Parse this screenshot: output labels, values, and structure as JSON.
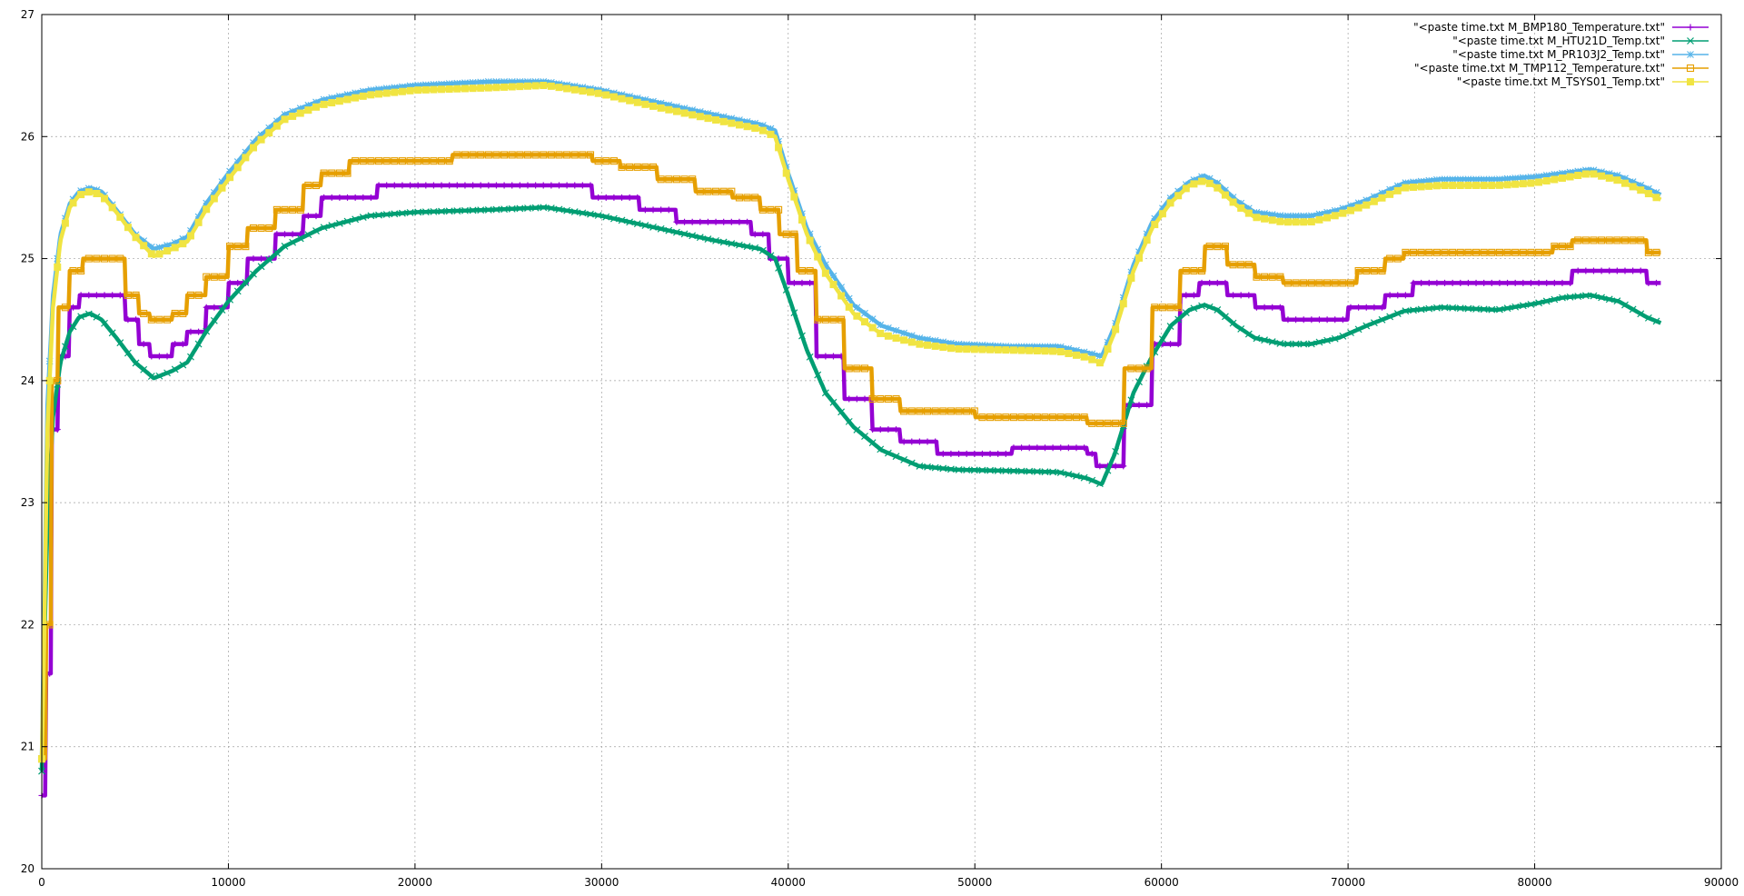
{
  "chart_data": {
    "type": "line",
    "xlim": [
      0,
      90000
    ],
    "ylim": [
      20,
      27
    ],
    "grid": true,
    "legend_position": "top-right",
    "x_ticks": [
      "0",
      "10000",
      "20000",
      "30000",
      "40000",
      "50000",
      "60000",
      "70000",
      "80000",
      "90000"
    ],
    "y_ticks": [
      "20",
      "21",
      "22",
      "23",
      "24",
      "25",
      "26",
      "27"
    ],
    "series": [
      {
        "name": "\"<paste time.txt M_BMP180_Temperature.txt\"",
        "color": "#9400d3",
        "marker": "plus",
        "step": true,
        "points": [
          [
            0,
            20.6
          ],
          [
            200,
            21.6
          ],
          [
            500,
            23.6
          ],
          [
            900,
            24.2
          ],
          [
            1500,
            24.6
          ],
          [
            2000,
            24.7
          ],
          [
            3500,
            24.7
          ],
          [
            4500,
            24.5
          ],
          [
            5200,
            24.3
          ],
          [
            5800,
            24.2
          ],
          [
            7000,
            24.3
          ],
          [
            7800,
            24.4
          ],
          [
            8800,
            24.6
          ],
          [
            10000,
            24.8
          ],
          [
            11000,
            25.0
          ],
          [
            12500,
            25.2
          ],
          [
            14000,
            25.35
          ],
          [
            15000,
            25.5
          ],
          [
            17500,
            25.5
          ],
          [
            18000,
            25.6
          ],
          [
            29000,
            25.6
          ],
          [
            29500,
            25.5
          ],
          [
            32000,
            25.4
          ],
          [
            34000,
            25.3
          ],
          [
            38000,
            25.2
          ],
          [
            39000,
            25.0
          ],
          [
            40000,
            24.8
          ],
          [
            41500,
            24.2
          ],
          [
            43000,
            23.85
          ],
          [
            44500,
            23.6
          ],
          [
            46000,
            23.5
          ],
          [
            48000,
            23.4
          ],
          [
            52000,
            23.45
          ],
          [
            56000,
            23.4
          ],
          [
            56500,
            23.3
          ],
          [
            57000,
            23.3
          ],
          [
            58000,
            23.8
          ],
          [
            59500,
            24.3
          ],
          [
            61000,
            24.7
          ],
          [
            62000,
            24.8
          ],
          [
            63500,
            24.7
          ],
          [
            65000,
            24.6
          ],
          [
            66500,
            24.5
          ],
          [
            69000,
            24.5
          ],
          [
            70000,
            24.6
          ],
          [
            72000,
            24.7
          ],
          [
            73500,
            24.8
          ],
          [
            81000,
            24.8
          ],
          [
            82000,
            24.9
          ],
          [
            85000,
            24.9
          ],
          [
            86000,
            24.8
          ],
          [
            86800,
            24.7
          ]
        ]
      },
      {
        "name": "\"<paste time.txt M_HTU21D_Temp.txt\"",
        "color": "#009e73",
        "marker": "cross",
        "step": false,
        "points": [
          [
            0,
            20.8
          ],
          [
            100,
            21.6
          ],
          [
            300,
            22.8
          ],
          [
            600,
            23.7
          ],
          [
            1000,
            24.15
          ],
          [
            1500,
            24.4
          ],
          [
            2000,
            24.52
          ],
          [
            2600,
            24.55
          ],
          [
            3200,
            24.5
          ],
          [
            4000,
            24.35
          ],
          [
            5000,
            24.15
          ],
          [
            6000,
            24.02
          ],
          [
            7000,
            24.08
          ],
          [
            7800,
            24.15
          ],
          [
            8800,
            24.4
          ],
          [
            10000,
            24.65
          ],
          [
            11500,
            24.9
          ],
          [
            13000,
            25.1
          ],
          [
            15000,
            25.25
          ],
          [
            17500,
            25.35
          ],
          [
            20000,
            25.38
          ],
          [
            24000,
            25.4
          ],
          [
            27000,
            25.42
          ],
          [
            30000,
            25.35
          ],
          [
            33000,
            25.25
          ],
          [
            36000,
            25.15
          ],
          [
            38500,
            25.08
          ],
          [
            39300,
            25.0
          ],
          [
            40000,
            24.7
          ],
          [
            41000,
            24.25
          ],
          [
            42000,
            23.9
          ],
          [
            43500,
            23.62
          ],
          [
            45000,
            23.43
          ],
          [
            47000,
            23.3
          ],
          [
            49000,
            23.27
          ],
          [
            52000,
            23.26
          ],
          [
            54500,
            23.25
          ],
          [
            56000,
            23.2
          ],
          [
            56800,
            23.15
          ],
          [
            57500,
            23.4
          ],
          [
            58500,
            23.9
          ],
          [
            59500,
            24.2
          ],
          [
            60500,
            24.45
          ],
          [
            61500,
            24.58
          ],
          [
            62300,
            24.62
          ],
          [
            63000,
            24.58
          ],
          [
            64000,
            24.45
          ],
          [
            65000,
            24.35
          ],
          [
            66500,
            24.3
          ],
          [
            68000,
            24.3
          ],
          [
            69500,
            24.35
          ],
          [
            71000,
            24.45
          ],
          [
            73000,
            24.57
          ],
          [
            75000,
            24.6
          ],
          [
            78000,
            24.58
          ],
          [
            80000,
            24.63
          ],
          [
            81500,
            24.68
          ],
          [
            83000,
            24.7
          ],
          [
            84500,
            24.65
          ],
          [
            86000,
            24.52
          ],
          [
            86800,
            24.47
          ]
        ]
      },
      {
        "name": "\"<paste time.txt M_PR103J2_Temp.txt\"",
        "color": "#56b4e9",
        "marker": "star",
        "step": false,
        "points": [
          [
            0,
            20.9
          ],
          [
            100,
            21.8
          ],
          [
            300,
            23.8
          ],
          [
            600,
            24.7
          ],
          [
            1000,
            25.2
          ],
          [
            1500,
            25.45
          ],
          [
            2000,
            25.55
          ],
          [
            2600,
            25.58
          ],
          [
            3200,
            25.55
          ],
          [
            4000,
            25.4
          ],
          [
            5000,
            25.2
          ],
          [
            6000,
            25.08
          ],
          [
            7000,
            25.12
          ],
          [
            7800,
            25.18
          ],
          [
            8800,
            25.45
          ],
          [
            10000,
            25.7
          ],
          [
            11500,
            25.98
          ],
          [
            13000,
            26.18
          ],
          [
            15000,
            26.3
          ],
          [
            17500,
            26.38
          ],
          [
            20000,
            26.42
          ],
          [
            24000,
            26.45
          ],
          [
            27000,
            26.45
          ],
          [
            30000,
            26.38
          ],
          [
            33000,
            26.28
          ],
          [
            36000,
            26.18
          ],
          [
            38500,
            26.1
          ],
          [
            39300,
            26.05
          ],
          [
            40000,
            25.7
          ],
          [
            41000,
            25.25
          ],
          [
            42000,
            24.95
          ],
          [
            43500,
            24.62
          ],
          [
            45000,
            24.45
          ],
          [
            47000,
            24.35
          ],
          [
            49000,
            24.3
          ],
          [
            52000,
            24.28
          ],
          [
            54500,
            24.28
          ],
          [
            56000,
            24.23
          ],
          [
            56800,
            24.2
          ],
          [
            57500,
            24.45
          ],
          [
            58500,
            24.95
          ],
          [
            59500,
            25.3
          ],
          [
            60500,
            25.5
          ],
          [
            61500,
            25.63
          ],
          [
            62300,
            25.68
          ],
          [
            63000,
            25.62
          ],
          [
            64000,
            25.48
          ],
          [
            65000,
            25.38
          ],
          [
            66500,
            25.35
          ],
          [
            68000,
            25.35
          ],
          [
            69500,
            25.4
          ],
          [
            71000,
            25.48
          ],
          [
            73000,
            25.62
          ],
          [
            75000,
            25.65
          ],
          [
            78000,
            25.65
          ],
          [
            80000,
            25.67
          ],
          [
            81500,
            25.7
          ],
          [
            83000,
            25.73
          ],
          [
            84500,
            25.68
          ],
          [
            86000,
            25.58
          ],
          [
            86800,
            25.52
          ]
        ]
      },
      {
        "name": "\"<paste time.txt M_TMP112_Temperature.txt\"",
        "color": "#e69f00",
        "marker": "square",
        "step": true,
        "points": [
          [
            0,
            20.9
          ],
          [
            200,
            22.0
          ],
          [
            500,
            24.0
          ],
          [
            900,
            24.6
          ],
          [
            1500,
            24.9
          ],
          [
            2200,
            25.0
          ],
          [
            3500,
            25.0
          ],
          [
            4500,
            24.7
          ],
          [
            5200,
            24.55
          ],
          [
            5800,
            24.5
          ],
          [
            7000,
            24.55
          ],
          [
            7800,
            24.7
          ],
          [
            8800,
            24.85
          ],
          [
            10000,
            25.1
          ],
          [
            11000,
            25.25
          ],
          [
            12500,
            25.4
          ],
          [
            14000,
            25.6
          ],
          [
            15000,
            25.7
          ],
          [
            16500,
            25.8
          ],
          [
            22000,
            25.85
          ],
          [
            27000,
            25.85
          ],
          [
            29500,
            25.8
          ],
          [
            31000,
            25.75
          ],
          [
            33000,
            25.65
          ],
          [
            35000,
            25.55
          ],
          [
            37000,
            25.5
          ],
          [
            38500,
            25.4
          ],
          [
            39500,
            25.2
          ],
          [
            40500,
            24.9
          ],
          [
            41500,
            24.5
          ],
          [
            43000,
            24.1
          ],
          [
            44500,
            23.85
          ],
          [
            46000,
            23.75
          ],
          [
            48000,
            23.75
          ],
          [
            50000,
            23.7
          ],
          [
            55000,
            23.7
          ],
          [
            56000,
            23.65
          ],
          [
            57000,
            23.65
          ],
          [
            58000,
            24.1
          ],
          [
            59500,
            24.6
          ],
          [
            61000,
            24.9
          ],
          [
            62300,
            25.1
          ],
          [
            63500,
            24.95
          ],
          [
            65000,
            24.85
          ],
          [
            66500,
            24.8
          ],
          [
            69000,
            24.8
          ],
          [
            70500,
            24.9
          ],
          [
            72000,
            25.0
          ],
          [
            73000,
            25.05
          ],
          [
            81000,
            25.1
          ],
          [
            82000,
            25.15
          ],
          [
            85000,
            25.15
          ],
          [
            86000,
            25.05
          ],
          [
            86800,
            24.95
          ]
        ]
      },
      {
        "name": "\"<paste time.txt M_TSYS01_Temp.txt\"",
        "color": "#f0e442",
        "marker": "filled-square",
        "step": false,
        "points": [
          [
            0,
            20.9
          ],
          [
            100,
            21.6
          ],
          [
            300,
            23.6
          ],
          [
            600,
            24.6
          ],
          [
            1000,
            25.15
          ],
          [
            1500,
            25.42
          ],
          [
            2000,
            25.52
          ],
          [
            2600,
            25.55
          ],
          [
            3200,
            25.52
          ],
          [
            4000,
            25.38
          ],
          [
            5000,
            25.18
          ],
          [
            6000,
            25.02
          ],
          [
            7000,
            25.08
          ],
          [
            7800,
            25.14
          ],
          [
            8800,
            25.4
          ],
          [
            10000,
            25.65
          ],
          [
            11500,
            25.94
          ],
          [
            13000,
            26.14
          ],
          [
            15000,
            26.26
          ],
          [
            17500,
            26.34
          ],
          [
            20000,
            26.38
          ],
          [
            24000,
            26.4
          ],
          [
            27000,
            26.42
          ],
          [
            30000,
            26.35
          ],
          [
            33000,
            26.24
          ],
          [
            36000,
            26.14
          ],
          [
            38500,
            26.06
          ],
          [
            39300,
            26.0
          ],
          [
            40000,
            25.65
          ],
          [
            41000,
            25.2
          ],
          [
            42000,
            24.88
          ],
          [
            43500,
            24.55
          ],
          [
            45000,
            24.38
          ],
          [
            47000,
            24.3
          ],
          [
            49000,
            24.26
          ],
          [
            52000,
            24.25
          ],
          [
            54500,
            24.24
          ],
          [
            56000,
            24.19
          ],
          [
            56800,
            24.14
          ],
          [
            57500,
            24.4
          ],
          [
            58500,
            24.9
          ],
          [
            59500,
            25.25
          ],
          [
            60500,
            25.46
          ],
          [
            61500,
            25.6
          ],
          [
            62300,
            25.64
          ],
          [
            63000,
            25.58
          ],
          [
            64000,
            25.44
          ],
          [
            65000,
            25.34
          ],
          [
            66500,
            25.3
          ],
          [
            68000,
            25.3
          ],
          [
            69500,
            25.36
          ],
          [
            71000,
            25.44
          ],
          [
            73000,
            25.58
          ],
          [
            75000,
            25.6
          ],
          [
            78000,
            25.6
          ],
          [
            80000,
            25.62
          ],
          [
            81500,
            25.66
          ],
          [
            83000,
            25.7
          ],
          [
            84500,
            25.64
          ],
          [
            86000,
            25.54
          ],
          [
            86800,
            25.48
          ]
        ]
      }
    ]
  }
}
